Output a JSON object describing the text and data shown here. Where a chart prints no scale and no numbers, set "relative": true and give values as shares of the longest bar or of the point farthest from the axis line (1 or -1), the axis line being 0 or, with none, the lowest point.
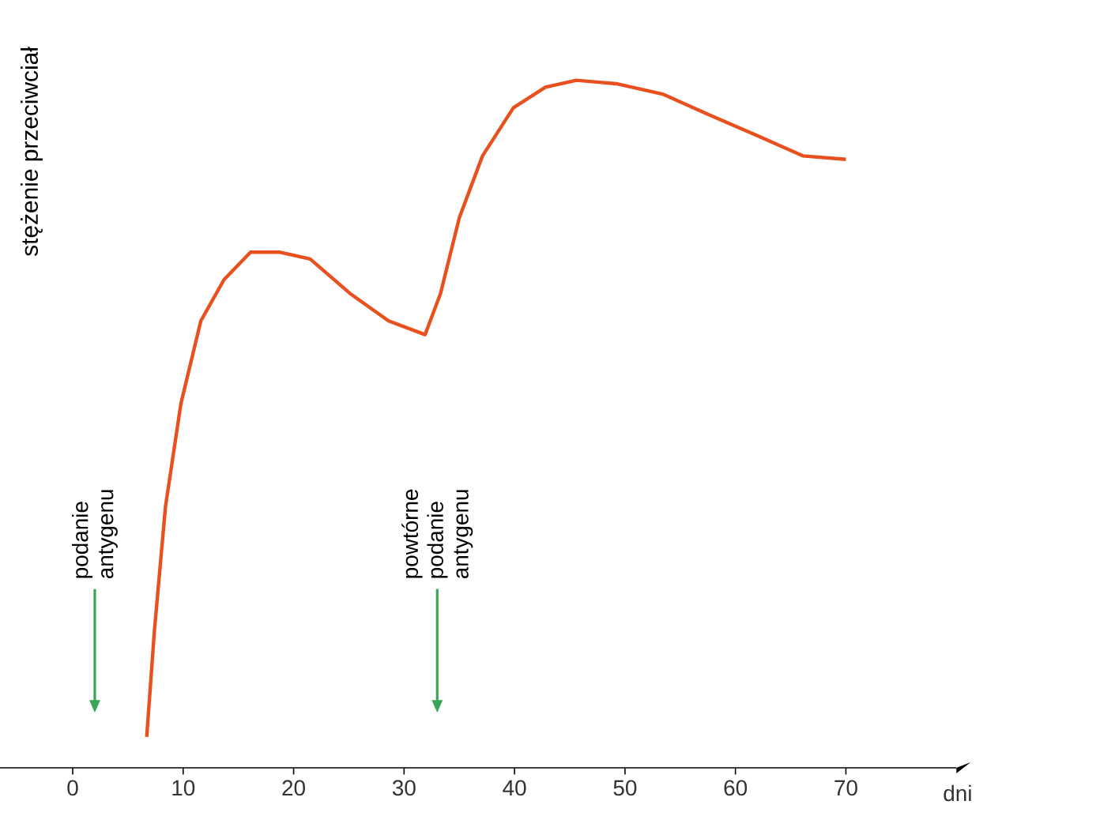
{
  "chart_data": {
    "type": "line",
    "xlabel": "dni",
    "ylabel": "stężenie przeciwciał",
    "relative": true,
    "color": "#e8501e",
    "x": [
      6.7,
      7.4,
      8.4,
      9.8,
      11.6,
      13.7,
      16.1,
      18.7,
      21.5,
      25.1,
      28.6,
      31.9,
      33.3,
      35.0,
      37.1,
      39.9,
      42.8,
      45.6,
      49.2,
      53.4,
      57.6,
      61.9,
      66.1,
      70
    ],
    "values": [
      0.045,
      0.2,
      0.38,
      0.53,
      0.65,
      0.71,
      0.75,
      0.75,
      0.74,
      0.69,
      0.65,
      0.63,
      0.69,
      0.8,
      0.89,
      0.96,
      0.99,
      1.0,
      0.995,
      0.98,
      0.95,
      0.92,
      0.89,
      0.885
    ],
    "xlim": [
      -11,
      80
    ],
    "xticks": [
      0,
      10,
      20,
      30,
      40,
      50,
      60,
      70
    ],
    "ref_lines": [
      {
        "axis": "x",
        "value": 2,
        "label": "podanie antygenu",
        "color": "#3aa655"
      },
      {
        "axis": "x",
        "value": 33,
        "label": "powtórne podanie antygenu",
        "color": "#3aa655"
      }
    ]
  }
}
